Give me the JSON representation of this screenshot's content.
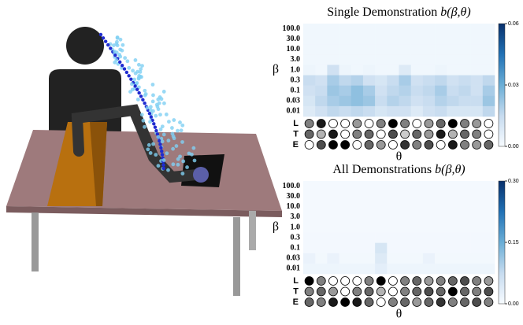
{
  "chart_data": [
    {
      "type": "heatmap",
      "title": "Single Demonstration",
      "title_formula": "b(β,θ)",
      "xlabel": "θ",
      "ylabel": "β",
      "y_categories": [
        "100.0",
        "30.0",
        "10.0",
        "3.0",
        "1.0",
        "0.3",
        "0.1",
        "0.03",
        "0.01"
      ],
      "values": [
        [
          0.002,
          0.002,
          0.002,
          0.002,
          0.002,
          0.002,
          0.002,
          0.002,
          0.002,
          0.002,
          0.002,
          0.002,
          0.002,
          0.002,
          0.002,
          0.002
        ],
        [
          0.002,
          0.002,
          0.002,
          0.002,
          0.002,
          0.002,
          0.002,
          0.002,
          0.002,
          0.002,
          0.002,
          0.002,
          0.002,
          0.002,
          0.002,
          0.002
        ],
        [
          0.002,
          0.002,
          0.002,
          0.002,
          0.002,
          0.002,
          0.002,
          0.002,
          0.002,
          0.002,
          0.002,
          0.002,
          0.002,
          0.002,
          0.002,
          0.002
        ],
        [
          0.002,
          0.002,
          0.002,
          0.002,
          0.002,
          0.002,
          0.002,
          0.002,
          0.002,
          0.002,
          0.002,
          0.002,
          0.002,
          0.002,
          0.002,
          0.002
        ],
        [
          0.003,
          0.002,
          0.012,
          0.003,
          0.002,
          0.003,
          0.002,
          0.002,
          0.008,
          0.002,
          0.002,
          0.003,
          0.002,
          0.002,
          0.002,
          0.002
        ],
        [
          0.014,
          0.012,
          0.02,
          0.016,
          0.018,
          0.012,
          0.01,
          0.014,
          0.02,
          0.012,
          0.014,
          0.016,
          0.012,
          0.014,
          0.012,
          0.016
        ],
        [
          0.012,
          0.014,
          0.022,
          0.02,
          0.024,
          0.02,
          0.012,
          0.016,
          0.018,
          0.014,
          0.016,
          0.02,
          0.014,
          0.016,
          0.012,
          0.02
        ],
        [
          0.01,
          0.016,
          0.02,
          0.022,
          0.024,
          0.022,
          0.014,
          0.018,
          0.016,
          0.012,
          0.014,
          0.018,
          0.016,
          0.014,
          0.014,
          0.022
        ],
        [
          0.008,
          0.012,
          0.016,
          0.014,
          0.016,
          0.014,
          0.01,
          0.012,
          0.012,
          0.008,
          0.012,
          0.014,
          0.01,
          0.01,
          0.01,
          0.016
        ]
      ],
      "clim": [
        0,
        0.06
      ],
      "cticks": [
        {
          "value": 0,
          "label": "0.00"
        },
        {
          "value": 0.03,
          "label": "0.03"
        },
        {
          "value": 0.06,
          "label": "0.06"
        }
      ],
      "features": [
        {
          "name": "L",
          "levels": [
            0.5,
            0.9,
            0,
            0,
            0.4,
            0,
            0.5,
            1,
            0.5,
            0,
            0.4,
            0.6,
            1,
            0.5,
            0.4,
            0
          ]
        },
        {
          "name": "T",
          "levels": [
            0.6,
            0.3,
            0.9,
            0,
            0.5,
            0.6,
            0,
            0.7,
            0.2,
            0.6,
            0.4,
            0.9,
            0.3,
            0.6,
            0.5,
            0
          ]
        },
        {
          "name": "E",
          "levels": [
            0,
            0.7,
            1,
            1,
            0,
            0.6,
            0.4,
            0,
            0.8,
            0.5,
            0.7,
            0,
            0.9,
            0.5,
            0.4,
            0.6
          ]
        }
      ]
    },
    {
      "type": "heatmap",
      "title": "All Demonstrations",
      "title_formula": "b(β,θ)",
      "xlabel": "θ",
      "ylabel": "β",
      "y_categories": [
        "100.0",
        "30.0",
        "10.0",
        "3.0",
        "1.0",
        "0.3",
        "0.1",
        "0.03",
        "0.01"
      ],
      "values": [
        [
          0.005,
          0.005,
          0.005,
          0.005,
          0.005,
          0.005,
          0.005,
          0.005,
          0.005,
          0.005,
          0.005,
          0.005,
          0.005,
          0.005,
          0.005,
          0.005
        ],
        [
          0.005,
          0.005,
          0.005,
          0.005,
          0.005,
          0.005,
          0.005,
          0.005,
          0.005,
          0.005,
          0.005,
          0.005,
          0.005,
          0.005,
          0.005,
          0.005
        ],
        [
          0.005,
          0.005,
          0.005,
          0.005,
          0.005,
          0.005,
          0.005,
          0.005,
          0.005,
          0.005,
          0.005,
          0.005,
          0.005,
          0.005,
          0.005,
          0.005
        ],
        [
          0.005,
          0.005,
          0.005,
          0.005,
          0.005,
          0.005,
          0.005,
          0.005,
          0.005,
          0.005,
          0.005,
          0.005,
          0.005,
          0.005,
          0.005,
          0.005
        ],
        [
          0.005,
          0.005,
          0.005,
          0.005,
          0.005,
          0.005,
          0.005,
          0.005,
          0.005,
          0.005,
          0.005,
          0.005,
          0.005,
          0.005,
          0.005,
          0.005
        ],
        [
          0.006,
          0.006,
          0.006,
          0.006,
          0.006,
          0.006,
          0.006,
          0.006,
          0.006,
          0.006,
          0.006,
          0.006,
          0.006,
          0.006,
          0.006,
          0.006
        ],
        [
          0.006,
          0.006,
          0.006,
          0.006,
          0.006,
          0.006,
          0.05,
          0.006,
          0.006,
          0.006,
          0.006,
          0.006,
          0.006,
          0.006,
          0.006,
          0.006
        ],
        [
          0.02,
          0.008,
          0.02,
          0.008,
          0.008,
          0.008,
          0.04,
          0.008,
          0.008,
          0.008,
          0.02,
          0.008,
          0.008,
          0.008,
          0.008,
          0.008
        ],
        [
          0.015,
          0.015,
          0.015,
          0.015,
          0.015,
          0.015,
          0.03,
          0.015,
          0.015,
          0.015,
          0.015,
          0.015,
          0.015,
          0.015,
          0.015,
          0.015
        ]
      ],
      "clim": [
        0,
        0.3
      ],
      "cticks": [
        {
          "value": 0,
          "label": "0.00"
        },
        {
          "value": 0.15,
          "label": "0.15"
        },
        {
          "value": 0.3,
          "label": "0.30"
        }
      ],
      "features": [
        {
          "name": "L",
          "levels": [
            1,
            0.5,
            0,
            0,
            0,
            0.5,
            1,
            0,
            0.5,
            0.6,
            0.4,
            0.5,
            0.6,
            0.7,
            0.5,
            0.4
          ]
        },
        {
          "name": "T",
          "levels": [
            0.5,
            0.6,
            0.4,
            0,
            0.5,
            0.6,
            0.3,
            0,
            0.5,
            0.6,
            0.7,
            0.6,
            1,
            0.6,
            0.5,
            0.7
          ]
        },
        {
          "name": "E",
          "levels": [
            0.6,
            0.5,
            0.9,
            1,
            0.9,
            0.6,
            0,
            0.5,
            0.6,
            0.4,
            0.6,
            0.8,
            0.5,
            0.6,
            0.7,
            0.5
          ]
        }
      ]
    }
  ]
}
